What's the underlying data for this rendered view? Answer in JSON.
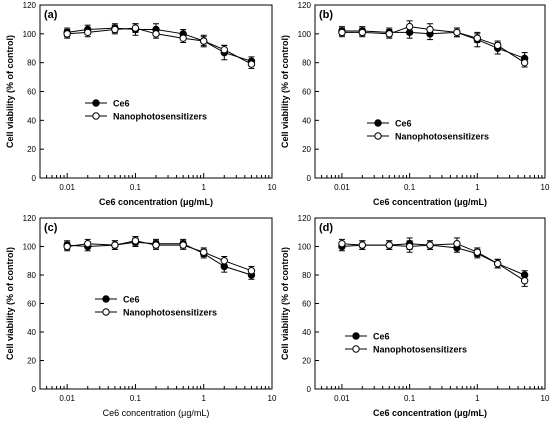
{
  "chart_data": [
    {
      "panel_label": "(a)",
      "type": "line",
      "xscale": "log",
      "xlim": [
        0.004,
        10
      ],
      "ylim": [
        0,
        120
      ],
      "xticks": [
        "0.01",
        "0.1",
        "1",
        "10"
      ],
      "yticks": [
        "0",
        "20",
        "40",
        "60",
        "80",
        "100",
        "120"
      ],
      "xlabel": "Ce6 concentration (μg/mL)",
      "ylabel": "Cell viability (% of control)",
      "x": [
        0.01,
        0.02,
        0.05,
        0.1,
        0.2,
        0.5,
        1,
        2,
        5
      ],
      "series": [
        {
          "name": "Ce6",
          "marker": "filled-circle",
          "values": [
            101,
            103,
            104,
            103,
            103,
            100,
            95,
            87,
            81
          ],
          "errors": [
            3,
            3,
            3,
            4,
            4,
            3,
            4,
            5,
            3
          ]
        },
        {
          "name": "Nanophotosensitizers",
          "marker": "open-circle",
          "values": [
            100,
            101,
            103,
            104,
            100,
            97,
            95,
            89,
            79
          ],
          "errors": [
            3,
            3,
            3,
            3,
            3,
            3,
            3,
            3,
            3
          ]
        }
      ],
      "legend": {
        "items": [
          "Ce6",
          "Nanophotosensitizers"
        ],
        "position": "center-left"
      }
    },
    {
      "panel_label": "(b)",
      "type": "line",
      "xscale": "log",
      "xlim": [
        0.004,
        10
      ],
      "ylim": [
        0,
        120
      ],
      "xticks": [
        "0.01",
        "0.1",
        "1",
        "10"
      ],
      "yticks": [
        "0",
        "20",
        "40",
        "60",
        "80",
        "100",
        "120"
      ],
      "xlabel": "Ce6 concentration (μg/mL)",
      "ylabel": "Cell viability (% of control)",
      "x": [
        0.01,
        0.02,
        0.05,
        0.1,
        0.2,
        0.5,
        1,
        2,
        5
      ],
      "series": [
        {
          "name": "Ce6",
          "marker": "filled-circle",
          "values": [
            102,
            102,
            101,
            101,
            100,
            101,
            96,
            90,
            83
          ],
          "errors": [
            3,
            3,
            3,
            4,
            4,
            3,
            5,
            4,
            4
          ]
        },
        {
          "name": "Nanophotosensitizers",
          "marker": "open-circle",
          "values": [
            101,
            101,
            100,
            105,
            103,
            101,
            97,
            92,
            80
          ],
          "errors": [
            3,
            3,
            3,
            4,
            4,
            3,
            3,
            3,
            3
          ]
        }
      ],
      "legend": {
        "items": [
          "Ce6",
          "Nanophotosensitizers"
        ],
        "position": "center-right"
      }
    },
    {
      "panel_label": "(c)",
      "type": "line",
      "xscale": "log",
      "xlim": [
        0.004,
        10
      ],
      "ylim": [
        0,
        120
      ],
      "xticks": [
        "0.01",
        "0.1",
        "1",
        "10"
      ],
      "yticks": [
        "0",
        "20",
        "40",
        "60",
        "80",
        "100",
        "120"
      ],
      "xlabel": "Ce6 concentration (μg/mL)",
      "ylabel": "Cell viability (% of control)",
      "x": [
        0.01,
        0.02,
        0.05,
        0.1,
        0.2,
        0.5,
        1,
        2,
        5
      ],
      "series": [
        {
          "name": "Ce6",
          "marker": "filled-circle",
          "values": [
            101,
            100,
            101,
            103,
            102,
            102,
            95,
            86,
            80
          ],
          "errors": [
            3,
            3,
            3,
            3,
            3,
            3,
            3,
            4,
            3
          ]
        },
        {
          "name": "Nanophotosensitizers",
          "marker": "open-circle",
          "values": [
            100,
            102,
            101,
            104,
            101,
            101,
            96,
            90,
            83
          ],
          "errors": [
            3,
            3,
            3,
            3,
            3,
            3,
            3,
            3,
            3
          ]
        }
      ],
      "legend": {
        "items": [
          "Ce6",
          "Nanophotosensitizers"
        ],
        "position": "center-left"
      }
    },
    {
      "panel_label": "(d)",
      "type": "line",
      "xscale": "log",
      "xlim": [
        0.004,
        10
      ],
      "ylim": [
        0,
        120
      ],
      "xticks": [
        "0.01",
        "0.1",
        "1",
        "10"
      ],
      "yticks": [
        "0",
        "20",
        "40",
        "60",
        "80",
        "100",
        "120"
      ],
      "xlabel": "Ce6 concentration (μg/mL)",
      "ylabel": "Cell viability (% of control)",
      "x": [
        0.01,
        0.02,
        0.05,
        0.1,
        0.2,
        0.5,
        1,
        2,
        5
      ],
      "series": [
        {
          "name": "Ce6",
          "marker": "filled-circle",
          "values": [
            100,
            101,
            101,
            102,
            101,
            99,
            95,
            88,
            80
          ],
          "errors": [
            3,
            3,
            3,
            4,
            3,
            3,
            3,
            3,
            3
          ]
        },
        {
          "name": "Nanophotosensitizers",
          "marker": "open-circle",
          "values": [
            102,
            101,
            101,
            100,
            101,
            102,
            96,
            88,
            76
          ],
          "errors": [
            3,
            3,
            3,
            4,
            3,
            4,
            3,
            3,
            4
          ]
        }
      ],
      "legend": {
        "items": [
          "Ce6",
          "Nanophotosensitizers"
        ],
        "position": "center"
      }
    }
  ]
}
